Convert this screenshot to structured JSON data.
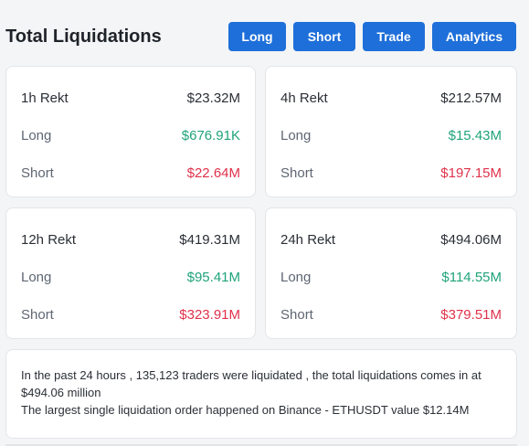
{
  "header": {
    "title": "Total Liquidations",
    "tabs": [
      {
        "label": "Long"
      },
      {
        "label": "Short"
      },
      {
        "label": "Trade"
      },
      {
        "label": "Analytics"
      }
    ]
  },
  "cards": [
    {
      "period": "1h Rekt",
      "total": "$23.32M",
      "long_label": "Long",
      "long": "$676.91K",
      "short_label": "Short",
      "short": "$22.64M"
    },
    {
      "period": "4h Rekt",
      "total": "$212.57M",
      "long_label": "Long",
      "long": "$15.43M",
      "short_label": "Short",
      "short": "$197.15M"
    },
    {
      "period": "12h Rekt",
      "total": "$419.31M",
      "long_label": "Long",
      "long": "$95.41M",
      "short_label": "Short",
      "short": "$323.91M"
    },
    {
      "period": "24h Rekt",
      "total": "$494.06M",
      "long_label": "Long",
      "long": "$114.55M",
      "short_label": "Short",
      "short": "$379.51M"
    }
  ],
  "summary": {
    "line1": "In the past 24 hours , 135,123 traders were liquidated , the total liquidations comes in at $494.06 million",
    "line2": "The largest single liquidation order happened on Binance - ETHUSDT value $12.14M"
  },
  "colors": {
    "accent": "#1e6fd9",
    "long": "#1fa37a",
    "short": "#e0324b"
  }
}
